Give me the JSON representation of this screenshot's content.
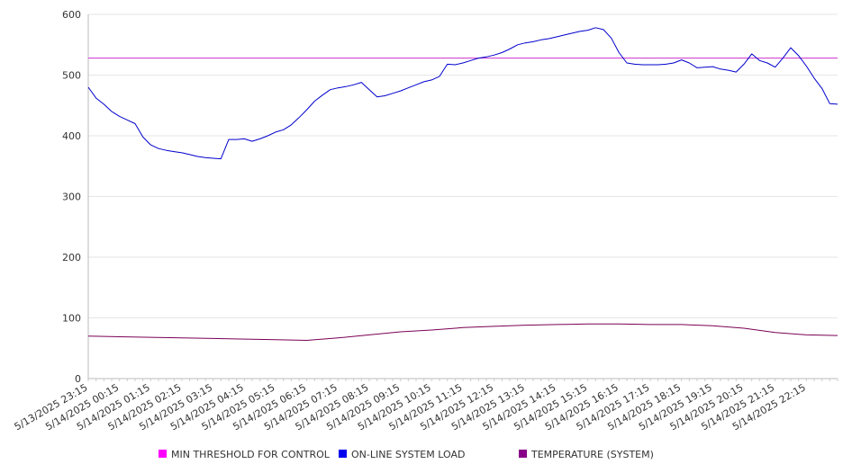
{
  "chart_data": {
    "type": "line",
    "title": "",
    "xlabel": "",
    "ylabel": "",
    "ylim": [
      0,
      600
    ],
    "yticks": [
      0,
      100,
      200,
      300,
      400,
      500,
      600
    ],
    "grid": true,
    "legend_position": "bottom",
    "x_tick_labels": [
      "5/13/2025 23:15",
      "5/14/2025 00:15",
      "5/14/2025 01:15",
      "5/14/2025 02:15",
      "5/14/2025 03:15",
      "5/14/2025 04:15",
      "5/14/2025 05:15",
      "5/14/2025 06:15",
      "5/14/2025 07:15",
      "5/14/2025 08:15",
      "5/14/2025 09:15",
      "5/14/2025 10:15",
      "5/14/2025 11:15",
      "5/14/2025 12:15",
      "5/14/2025 13:15",
      "5/14/2025 14:15",
      "5/14/2025 15:15",
      "5/14/2025 16:15",
      "5/14/2025 17:15",
      "5/14/2025 18:15",
      "5/14/2025 19:15",
      "5/14/2025 20:15",
      "5/14/2025 21:15",
      "5/14/2025 22:15"
    ],
    "x_range": [
      "5/13/2025 23:15",
      "5/14/2025 23:15"
    ],
    "series": [
      {
        "name": "MIN THRESHOLD FOR CONTROL",
        "color": "#ff00ff",
        "line_color": "#cc33cc",
        "points": [
          [
            "5/13/2025 23:15",
            528
          ],
          [
            "5/14/2025 23:15",
            528
          ]
        ]
      },
      {
        "name": "ON-LINE SYSTEM LOAD",
        "color": "#0000ee",
        "line_color": "#0000cc",
        "points": [
          [
            "5/13/2025 23:15",
            480
          ],
          [
            "5/13/2025 23:30",
            462
          ],
          [
            "5/13/2025 23:45",
            452
          ],
          [
            "5/14/2025 00:00",
            440
          ],
          [
            "5/14/2025 00:15",
            432
          ],
          [
            "5/14/2025 00:30",
            426
          ],
          [
            "5/14/2025 00:45",
            420
          ],
          [
            "5/14/2025 01:00",
            398
          ],
          [
            "5/14/2025 01:15",
            385
          ],
          [
            "5/14/2025 01:30",
            379
          ],
          [
            "5/14/2025 01:45",
            376
          ],
          [
            "5/14/2025 02:00",
            374
          ],
          [
            "5/14/2025 02:15",
            372
          ],
          [
            "5/14/2025 02:30",
            369
          ],
          [
            "5/14/2025 02:45",
            366
          ],
          [
            "5/14/2025 03:00",
            364
          ],
          [
            "5/14/2025 03:15",
            363
          ],
          [
            "5/14/2025 03:30",
            362
          ],
          [
            "5/14/2025 03:45",
            394
          ],
          [
            "5/14/2025 04:00",
            394
          ],
          [
            "5/14/2025 04:15",
            395
          ],
          [
            "5/14/2025 04:30",
            391
          ],
          [
            "5/14/2025 04:45",
            395
          ],
          [
            "5/14/2025 05:00",
            400
          ],
          [
            "5/14/2025 05:15",
            406
          ],
          [
            "5/14/2025 05:30",
            410
          ],
          [
            "5/14/2025 05:45",
            418
          ],
          [
            "5/14/2025 06:00",
            430
          ],
          [
            "5/14/2025 06:15",
            443
          ],
          [
            "5/14/2025 06:30",
            457
          ],
          [
            "5/14/2025 06:45",
            467
          ],
          [
            "5/14/2025 07:00",
            476
          ],
          [
            "5/14/2025 07:15",
            479
          ],
          [
            "5/14/2025 07:30",
            481
          ],
          [
            "5/14/2025 07:45",
            484
          ],
          [
            "5/14/2025 08:00",
            488
          ],
          [
            "5/14/2025 08:15",
            476
          ],
          [
            "5/14/2025 08:30",
            464
          ],
          [
            "5/14/2025 08:45",
            466
          ],
          [
            "5/14/2025 09:00",
            470
          ],
          [
            "5/14/2025 09:15",
            474
          ],
          [
            "5/14/2025 09:30",
            479
          ],
          [
            "5/14/2025 09:45",
            484
          ],
          [
            "5/14/2025 10:00",
            489
          ],
          [
            "5/14/2025 10:15",
            492
          ],
          [
            "5/14/2025 10:30",
            498
          ],
          [
            "5/14/2025 10:45",
            518
          ],
          [
            "5/14/2025 11:00",
            517
          ],
          [
            "5/14/2025 11:15",
            520
          ],
          [
            "5/14/2025 11:30",
            524
          ],
          [
            "5/14/2025 11:45",
            528
          ],
          [
            "5/14/2025 12:00",
            530
          ],
          [
            "5/14/2025 12:15",
            533
          ],
          [
            "5/14/2025 12:30",
            537
          ],
          [
            "5/14/2025 12:45",
            543
          ],
          [
            "5/14/2025 13:00",
            550
          ],
          [
            "5/14/2025 13:15",
            553
          ],
          [
            "5/14/2025 13:30",
            555
          ],
          [
            "5/14/2025 13:45",
            558
          ],
          [
            "5/14/2025 14:00",
            560
          ],
          [
            "5/14/2025 14:15",
            563
          ],
          [
            "5/14/2025 14:30",
            566
          ],
          [
            "5/14/2025 14:45",
            569
          ],
          [
            "5/14/2025 15:00",
            572
          ],
          [
            "5/14/2025 15:15",
            574
          ],
          [
            "5/14/2025 15:30",
            578
          ],
          [
            "5/14/2025 15:45",
            575
          ],
          [
            "5/14/2025 16:00",
            561
          ],
          [
            "5/14/2025 16:15",
            537
          ],
          [
            "5/14/2025 16:30",
            520
          ],
          [
            "5/14/2025 16:45",
            518
          ],
          [
            "5/14/2025 17:00",
            517
          ],
          [
            "5/14/2025 17:15",
            517
          ],
          [
            "5/14/2025 17:30",
            517
          ],
          [
            "5/14/2025 17:45",
            518
          ],
          [
            "5/14/2025 18:00",
            520
          ],
          [
            "5/14/2025 18:15",
            525
          ],
          [
            "5/14/2025 18:30",
            520
          ],
          [
            "5/14/2025 18:45",
            512
          ],
          [
            "5/14/2025 19:00",
            513
          ],
          [
            "5/14/2025 19:15",
            514
          ],
          [
            "5/14/2025 19:30",
            510
          ],
          [
            "5/14/2025 19:45",
            508
          ],
          [
            "5/14/2025 20:00",
            505
          ],
          [
            "5/14/2025 20:15",
            518
          ],
          [
            "5/14/2025 20:30",
            535
          ],
          [
            "5/14/2025 20:45",
            524
          ],
          [
            "5/14/2025 21:00",
            520
          ],
          [
            "5/14/2025 21:15",
            513
          ],
          [
            "5/14/2025 21:30",
            528
          ],
          [
            "5/14/2025 21:45",
            545
          ],
          [
            "5/14/2025 22:00",
            532
          ],
          [
            "5/14/2025 22:15",
            515
          ],
          [
            "5/14/2025 22:30",
            495
          ],
          [
            "5/14/2025 22:45",
            478
          ],
          [
            "5/14/2025 23:00",
            453
          ],
          [
            "5/14/2025 23:15",
            452
          ]
        ]
      },
      {
        "name": "TEMPERATURE (SYSTEM)",
        "color": "#880088",
        "line_color": "#7a0055",
        "points": [
          [
            "5/13/2025 23:15",
            70
          ],
          [
            "5/14/2025 01:15",
            68
          ],
          [
            "5/14/2025 03:15",
            66
          ],
          [
            "5/14/2025 05:15",
            64
          ],
          [
            "5/14/2025 06:15",
            63
          ],
          [
            "5/14/2025 07:15",
            67
          ],
          [
            "5/14/2025 08:15",
            72
          ],
          [
            "5/14/2025 09:15",
            77
          ],
          [
            "5/14/2025 10:15",
            80
          ],
          [
            "5/14/2025 11:15",
            84
          ],
          [
            "5/14/2025 12:15",
            86
          ],
          [
            "5/14/2025 13:15",
            88
          ],
          [
            "5/14/2025 14:15",
            89
          ],
          [
            "5/14/2025 15:15",
            90
          ],
          [
            "5/14/2025 16:15",
            90
          ],
          [
            "5/14/2025 17:15",
            89
          ],
          [
            "5/14/2025 18:15",
            89
          ],
          [
            "5/14/2025 19:15",
            87
          ],
          [
            "5/14/2025 20:15",
            83
          ],
          [
            "5/14/2025 21:15",
            76
          ],
          [
            "5/14/2025 22:15",
            72
          ],
          [
            "5/14/2025 23:15",
            71
          ]
        ]
      }
    ]
  }
}
